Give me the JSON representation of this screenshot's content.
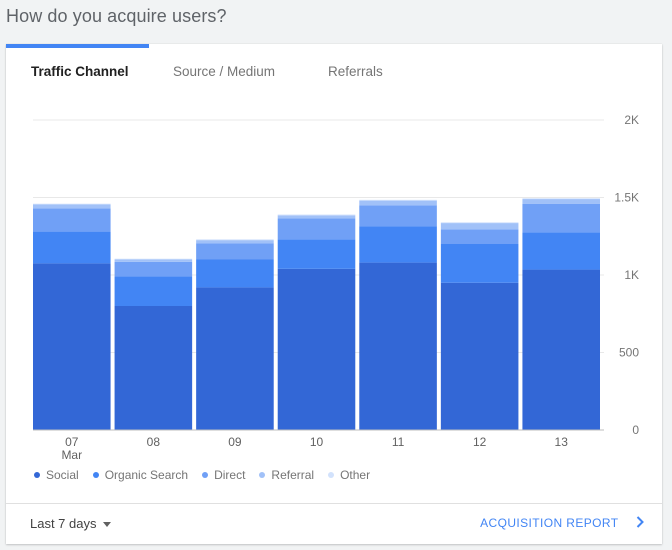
{
  "heading": "How do you acquire users?",
  "tabs": [
    {
      "label": "Traffic Channel",
      "active": true
    },
    {
      "label": "Source / Medium",
      "active": false
    },
    {
      "label": "Referrals",
      "active": false
    }
  ],
  "footer": {
    "date_range_label": "Last 7 days",
    "report_link_label": "ACQUISITION REPORT"
  },
  "colors": {
    "accent": "#4285f4",
    "grid": "#e8e8e8"
  },
  "icons": {
    "date_range_dropdown": "caret-down-icon",
    "report_link": "chevron-right-icon"
  },
  "chart_data": {
    "type": "bar",
    "stacked": true,
    "categories": [
      "07",
      "08",
      "09",
      "10",
      "11",
      "12",
      "13"
    ],
    "category_sublabels": [
      "Mar",
      "",
      "",
      "",
      "",
      "",
      ""
    ],
    "yticks": [
      {
        "value": 0,
        "label": "0"
      },
      {
        "value": 500,
        "label": "500"
      },
      {
        "value": 1000,
        "label": "1K"
      },
      {
        "value": 1500,
        "label": "1.5K"
      },
      {
        "value": 2000,
        "label": "2K"
      }
    ],
    "ylim": [
      0,
      2000
    ],
    "grid": true,
    "legend_position": "bottom-left",
    "series": [
      {
        "name": "Social",
        "color": "#3367d6",
        "values": [
          1075,
          800,
          920,
          1040,
          1080,
          950,
          1035
        ]
      },
      {
        "name": "Organic Search",
        "color": "#4285f4",
        "values": [
          205,
          190,
          180,
          190,
          235,
          250,
          240
        ]
      },
      {
        "name": "Direct",
        "color": "#70a0f6",
        "values": [
          150,
          95,
          105,
          135,
          135,
          95,
          185
        ]
      },
      {
        "name": "Referral",
        "color": "#a1c1f8",
        "values": [
          25,
          15,
          20,
          20,
          30,
          40,
          30
        ]
      },
      {
        "name": "Other",
        "color": "#d2e2fc",
        "values": [
          5,
          5,
          5,
          5,
          5,
          5,
          5
        ]
      }
    ]
  }
}
